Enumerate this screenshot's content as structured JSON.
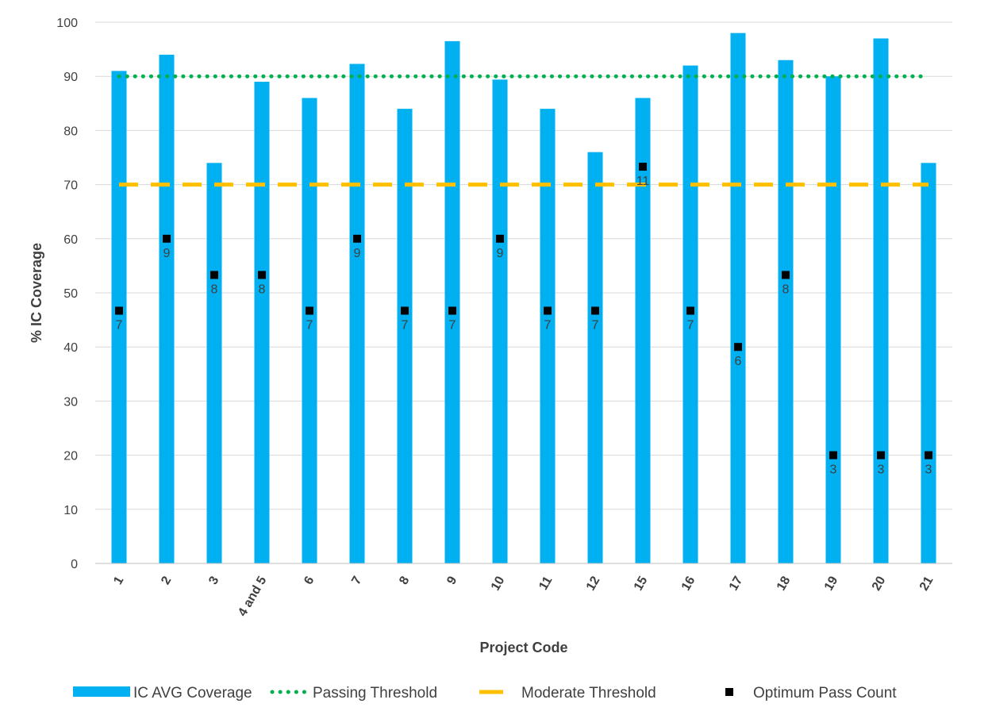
{
  "chart_data": {
    "type": "bar",
    "title": "",
    "xlabel": "Project Code",
    "ylabel": "% IC Coverage",
    "ylim": [
      0,
      100
    ],
    "yticks": [
      0,
      10,
      20,
      30,
      40,
      50,
      60,
      70,
      80,
      90,
      100
    ],
    "grid": true,
    "legend_position": "bottom",
    "categories": [
      "1",
      "2",
      "3",
      "4 and 5",
      "6",
      "7",
      "8",
      "9",
      "10",
      "11",
      "12",
      "15",
      "16",
      "17",
      "18",
      "19",
      "20",
      "21"
    ],
    "series": [
      {
        "name": "IC AVG Coverage",
        "type": "bar",
        "color": "#00b0f0",
        "values": [
          91,
          94,
          74,
          89,
          86,
          92.3,
          84,
          96.5,
          89.4,
          84,
          76,
          86,
          92,
          98,
          93,
          90,
          97,
          74
        ]
      },
      {
        "name": "Passing Threshold",
        "type": "line",
        "style": "dotted",
        "color": "#00b050",
        "values": [
          90,
          90,
          90,
          90,
          90,
          90,
          90,
          90,
          90,
          90,
          90,
          90,
          90,
          90,
          90,
          90,
          90,
          90
        ]
      },
      {
        "name": "Moderate Threshold",
        "type": "line",
        "style": "dashed",
        "color": "#ffc000",
        "values": [
          70,
          70,
          70,
          70,
          70,
          70,
          70,
          70,
          70,
          70,
          70,
          70,
          70,
          70,
          70,
          70,
          70,
          70
        ]
      },
      {
        "name": "Optimum Pass Count",
        "type": "scatter",
        "marker": "square",
        "color": "#000000",
        "values": [
          46.7,
          60,
          53.3,
          53.3,
          46.7,
          60,
          46.7,
          46.7,
          60,
          46.7,
          46.7,
          73.3,
          46.7,
          40,
          53.3,
          20,
          20,
          20
        ],
        "labels": [
          "7",
          "9",
          "8",
          "8",
          "7",
          "9",
          "7",
          "7",
          "9",
          "7",
          "7",
          "11",
          "7",
          "6",
          "8",
          "3",
          "3",
          "3"
        ]
      }
    ]
  }
}
